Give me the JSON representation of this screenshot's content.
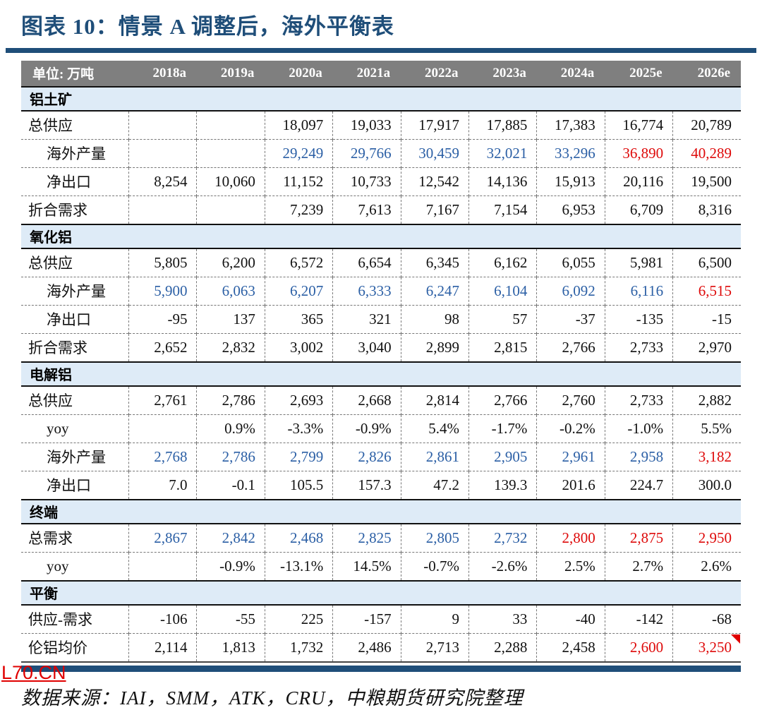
{
  "title": "图表 10：情景 A 调整后，海外平衡表",
  "colors": {
    "accent_navy": "#1F4E79",
    "header_gray": "#7F7F7F",
    "section_blue_bg": "#DEEBF7",
    "value_blue": "#2B5FA5",
    "value_red": "#DE0A0A"
  },
  "table": {
    "unit_label": "单位: 万吨",
    "years": [
      "2018a",
      "2019a",
      "2020a",
      "2021a",
      "2022a",
      "2023a",
      "2024a",
      "2025e",
      "2026e"
    ],
    "sections": [
      {
        "title": "铝土矿",
        "rows": [
          {
            "label": "总供应",
            "indent": false,
            "values": [
              "",
              "",
              "18,097",
              "19,033",
              "17,917",
              "17,885",
              "17,383",
              "16,774",
              "20,789"
            ]
          },
          {
            "label": "海外产量",
            "indent": true,
            "values": [
              "",
              "",
              "29,249",
              "29,766",
              "30,459",
              "32,021",
              "33,296",
              "36,890",
              "40,289"
            ],
            "colors": [
              "k",
              "k",
              "b",
              "b",
              "b",
              "b",
              "b",
              "r",
              "r"
            ]
          },
          {
            "label": "净出口",
            "indent": true,
            "values": [
              "8,254",
              "10,060",
              "11,152",
              "10,733",
              "12,542",
              "14,136",
              "15,913",
              "20,116",
              "19,500"
            ]
          },
          {
            "label": "折合需求",
            "indent": false,
            "values": [
              "",
              "",
              "7,239",
              "7,613",
              "7,167",
              "7,154",
              "6,953",
              "6,709",
              "8,316"
            ]
          }
        ]
      },
      {
        "title": "氧化铝",
        "rows": [
          {
            "label": "总供应",
            "indent": false,
            "values": [
              "5,805",
              "6,200",
              "6,572",
              "6,654",
              "6,345",
              "6,162",
              "6,055",
              "5,981",
              "6,500"
            ]
          },
          {
            "label": "海外产量",
            "indent": true,
            "values": [
              "5,900",
              "6,063",
              "6,207",
              "6,333",
              "6,247",
              "6,104",
              "6,092",
              "6,116",
              "6,515"
            ],
            "colors": [
              "b",
              "b",
              "b",
              "b",
              "b",
              "b",
              "b",
              "b",
              "r"
            ]
          },
          {
            "label": "净出口",
            "indent": true,
            "values": [
              "-95",
              "137",
              "365",
              "321",
              "98",
              "57",
              "-37",
              "-135",
              "-15"
            ]
          },
          {
            "label": "折合需求",
            "indent": false,
            "values": [
              "2,652",
              "2,832",
              "3,002",
              "3,040",
              "2,899",
              "2,815",
              "2,766",
              "2,733",
              "2,970"
            ]
          }
        ]
      },
      {
        "title": "电解铝",
        "rows": [
          {
            "label": "总供应",
            "indent": false,
            "values": [
              "2,761",
              "2,786",
              "2,693",
              "2,668",
              "2,814",
              "2,766",
              "2,760",
              "2,733",
              "2,882"
            ]
          },
          {
            "label": "yoy",
            "indent": true,
            "values": [
              "",
              "0.9%",
              "-3.3%",
              "-0.9%",
              "5.4%",
              "-1.7%",
              "-0.2%",
              "-1.0%",
              "5.5%"
            ]
          },
          {
            "label": "海外产量",
            "indent": true,
            "values": [
              "2,768",
              "2,786",
              "2,799",
              "2,826",
              "2,861",
              "2,905",
              "2,961",
              "2,958",
              "3,182"
            ],
            "colors": [
              "b",
              "b",
              "b",
              "b",
              "b",
              "b",
              "b",
              "b",
              "r"
            ]
          },
          {
            "label": "净出口",
            "indent": true,
            "values": [
              "7.0",
              "-0.1",
              "105.5",
              "157.3",
              "47.2",
              "139.3",
              "201.6",
              "224.7",
              "300.0"
            ]
          }
        ]
      },
      {
        "title": "终端",
        "rows": [
          {
            "label": "总需求",
            "indent": false,
            "values": [
              "2,867",
              "2,842",
              "2,468",
              "2,825",
              "2,805",
              "2,732",
              "2,800",
              "2,875",
              "2,950"
            ],
            "colors": [
              "b",
              "b",
              "b",
              "b",
              "b",
              "b",
              "r",
              "r",
              "r"
            ]
          },
          {
            "label": "yoy",
            "indent": true,
            "values": [
              "",
              "-0.9%",
              "-13.1%",
              "14.5%",
              "-0.7%",
              "-2.6%",
              "2.5%",
              "2.7%",
              "2.6%"
            ]
          }
        ]
      },
      {
        "title": "平衡",
        "rows": [
          {
            "label": "供应-需求",
            "indent": false,
            "values": [
              "-106",
              "-55",
              "225",
              "-157",
              "9",
              "33",
              "-40",
              "-142",
              "-68"
            ]
          },
          {
            "label": "伦铝均价",
            "indent": false,
            "values": [
              "2,114",
              "1,813",
              "1,732",
              "2,486",
              "2,713",
              "2,288",
              "2,458",
              "2,600",
              "3,250"
            ],
            "colors": [
              "k",
              "k",
              "k",
              "k",
              "k",
              "k",
              "k",
              "r",
              "r"
            ],
            "marker_cell": 8
          }
        ]
      }
    ]
  },
  "footer": {
    "source": "数据来源：IAI，SMM，ATK，CRU，中粮期货研究院整理",
    "watermark": "L70.CN"
  }
}
